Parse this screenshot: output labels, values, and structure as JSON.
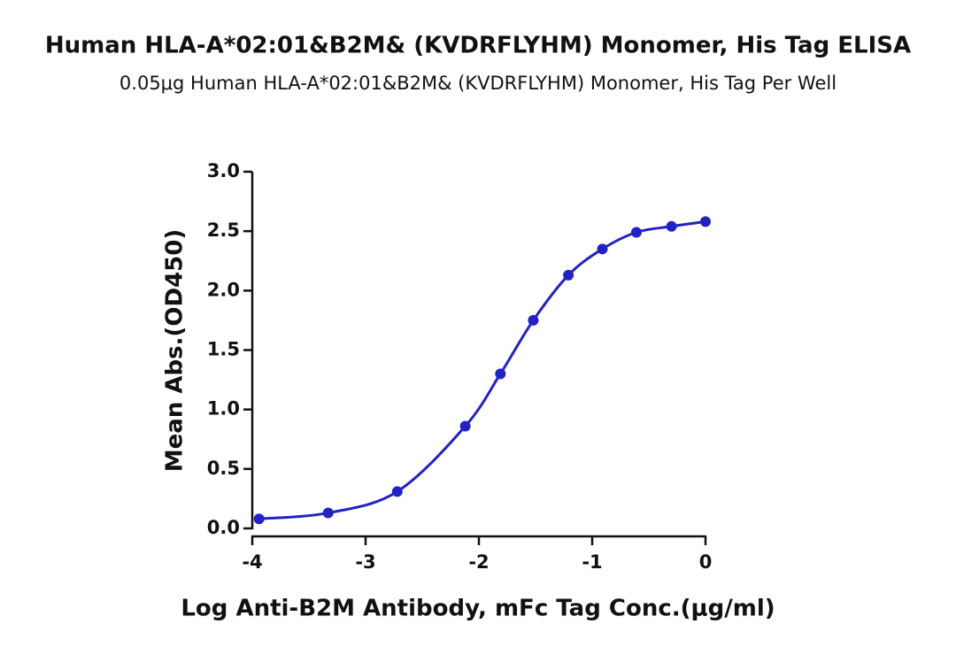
{
  "chart_data": {
    "type": "scatter",
    "title": "Human HLA-A*02:01&B2M& (KVDRFLYHM) Monomer, His Tag ELISA",
    "subtitle": "0.05μg Human HLA-A*02:01&B2M& (KVDRFLYHM) Monomer, His Tag Per Well",
    "x_label": "Log Anti-B2M Antibody, mFc Tag Conc.(μg/ml)",
    "y_label": "Mean Abs.(OD450)",
    "x": [
      -3.94,
      -3.33,
      -2.72,
      -2.12,
      -1.81,
      -1.52,
      -1.21,
      -0.91,
      -0.61,
      -0.3,
      0
    ],
    "series": [
      {
        "name": "Mean Abs.(OD450)",
        "color": "#2222c4",
        "values": [
          0.08,
          0.13,
          0.31,
          0.86,
          1.3,
          1.75,
          2.13,
          2.35,
          2.49,
          2.54,
          2.58
        ]
      }
    ],
    "xlim": [
      -4,
      0
    ],
    "xticks": [
      -4,
      -3,
      -2,
      -1,
      0
    ],
    "ylim": [
      0,
      3
    ],
    "yticks": [
      {
        "value": 0,
        "label": "0.0"
      },
      {
        "value": 0.5,
        "label": "0.5"
      },
      {
        "value": 1,
        "label": "1.0"
      },
      {
        "value": 1.5,
        "label": "1.5"
      },
      {
        "value": 2,
        "label": "2.0"
      },
      {
        "value": 2.5,
        "label": "2.5"
      },
      {
        "value": 3,
        "label": "3.0"
      }
    ]
  }
}
